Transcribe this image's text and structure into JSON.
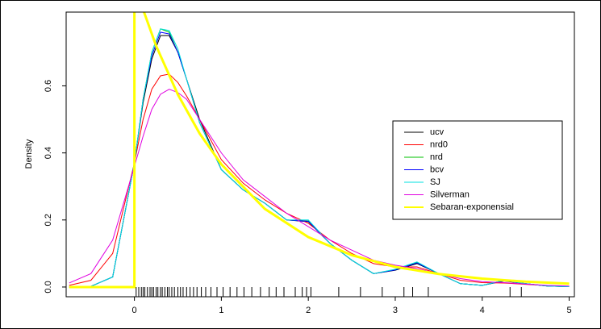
{
  "chart_data": {
    "type": "line",
    "ylabel": "Density",
    "xlim": [
      -0.785,
      5.06
    ],
    "ylim": [
      -0.029,
      0.82
    ],
    "xticks": [
      0,
      1,
      2,
      3,
      4,
      5
    ],
    "yticks": [
      {
        "value": 0,
        "label": "0.0"
      },
      0.2,
      0.4,
      0.6
    ],
    "legend": "center right",
    "x": [
      -0.75,
      -0.5,
      -0.25,
      0,
      0.1,
      0.2,
      0.3,
      0.4,
      0.5,
      0.6,
      0.75,
      1,
      1.25,
      1.5,
      1.75,
      2,
      2.25,
      2.5,
      2.75,
      3,
      3.25,
      3.5,
      3.75,
      4,
      4.25,
      4.5,
      4.75,
      5
    ],
    "series": [
      {
        "name": "ucv",
        "color": "#000000",
        "values": [
          0,
          0.002,
          0.03,
          0.37,
          0.55,
          0.68,
          0.75,
          0.75,
          0.7,
          0.62,
          0.5,
          0.35,
          0.29,
          0.25,
          0.2,
          0.195,
          0.13,
          0.08,
          0.04,
          0.05,
          0.07,
          0.04,
          0.01,
          0.005,
          0.018,
          0.01,
          0.003,
          0.001
        ]
      },
      {
        "name": "nrd0",
        "color": "#ff0000",
        "values": [
          0.005,
          0.02,
          0.1,
          0.37,
          0.5,
          0.59,
          0.63,
          0.635,
          0.61,
          0.57,
          0.5,
          0.38,
          0.31,
          0.26,
          0.22,
          0.19,
          0.14,
          0.1,
          0.07,
          0.06,
          0.06,
          0.04,
          0.02,
          0.013,
          0.012,
          0.008,
          0.004,
          0.002
        ]
      },
      {
        "name": "nrd",
        "color": "#00c000",
        "values": [
          0,
          0.002,
          0.03,
          0.37,
          0.56,
          0.7,
          0.77,
          0.76,
          0.7,
          0.62,
          0.49,
          0.35,
          0.29,
          0.25,
          0.2,
          0.197,
          0.13,
          0.08,
          0.04,
          0.052,
          0.073,
          0.04,
          0.01,
          0.005,
          0.02,
          0.01,
          0.003,
          0.001
        ]
      },
      {
        "name": "bcv",
        "color": "#0000ff",
        "values": [
          0,
          0.002,
          0.03,
          0.37,
          0.56,
          0.69,
          0.76,
          0.755,
          0.7,
          0.62,
          0.49,
          0.35,
          0.29,
          0.25,
          0.2,
          0.196,
          0.13,
          0.08,
          0.04,
          0.051,
          0.072,
          0.04,
          0.01,
          0.005,
          0.019,
          0.01,
          0.003,
          0.001
        ]
      },
      {
        "name": "SJ",
        "color": "#00e0e0",
        "values": [
          0,
          0.002,
          0.03,
          0.37,
          0.56,
          0.7,
          0.77,
          0.765,
          0.71,
          0.62,
          0.49,
          0.35,
          0.29,
          0.25,
          0.2,
          0.2,
          0.13,
          0.08,
          0.04,
          0.053,
          0.075,
          0.04,
          0.01,
          0.005,
          0.02,
          0.01,
          0.003,
          0.001
        ]
      },
      {
        "name": "Silverman",
        "color": "#e000e0",
        "values": [
          0.012,
          0.04,
          0.14,
          0.36,
          0.45,
          0.53,
          0.575,
          0.59,
          0.58,
          0.56,
          0.5,
          0.4,
          0.32,
          0.27,
          0.22,
          0.18,
          0.14,
          0.11,
          0.08,
          0.065,
          0.055,
          0.04,
          0.025,
          0.016,
          0.013,
          0.009,
          0.005,
          0.003
        ]
      },
      {
        "name": "Sebaran-exponensial",
        "color": "#ffff00",
        "width": 3,
        "x": [
          -0.75,
          0,
          0,
          0.25,
          0.5,
          0.75,
          1,
          1.5,
          2,
          2.5,
          3,
          3.5,
          4,
          4.5,
          5
        ],
        "values": [
          0,
          0,
          0.9,
          0.719,
          0.574,
          0.458,
          0.366,
          0.233,
          0.149,
          0.095,
          0.06,
          0.039,
          0.025,
          0.016,
          0.01
        ]
      }
    ],
    "rug": [
      0.02,
      0.05,
      0.08,
      0.1,
      0.12,
      0.15,
      0.18,
      0.2,
      0.22,
      0.25,
      0.27,
      0.3,
      0.32,
      0.35,
      0.38,
      0.4,
      0.43,
      0.46,
      0.5,
      0.53,
      0.56,
      0.6,
      0.64,
      0.68,
      0.72,
      0.77,
      0.82,
      0.88,
      0.95,
      1.02,
      1.1,
      1.18,
      1.26,
      1.35,
      1.45,
      1.55,
      1.63,
      1.72,
      1.85,
      1.93,
      1.98,
      2.03,
      2.35,
      2.6,
      2.85,
      3.1,
      3.2,
      3.38,
      4.32,
      4.45
    ]
  }
}
